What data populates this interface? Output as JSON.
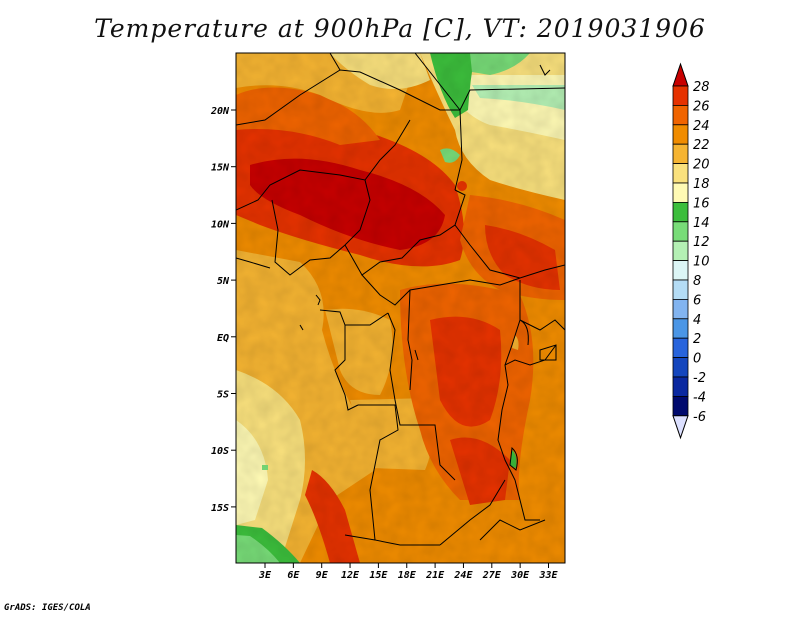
{
  "title": "Temperature at 900hPa [C], VT: 2019031906",
  "footer": "GrADS: IGES/COLA",
  "map": {
    "lat_ticks": [
      "20N",
      "15N",
      "10N",
      "5N",
      "EQ",
      "5S",
      "10S",
      "15S"
    ],
    "lon_ticks": [
      "3E",
      "6E",
      "9E",
      "12E",
      "15E",
      "18E",
      "21E",
      "24E",
      "27E",
      "30E",
      "33E"
    ]
  },
  "colorbar": {
    "labels": [
      "28",
      "26",
      "24",
      "22",
      "20",
      "18",
      "16",
      "14",
      "12",
      "10",
      "8",
      "6",
      "4",
      "2",
      "0",
      "-2",
      "-4",
      "-6"
    ],
    "colors": [
      "#c80000",
      "#e63200",
      "#f06400",
      "#f08c00",
      "#f5b432",
      "#fae17d",
      "#fffab4",
      "#3cbe3c",
      "#78dc78",
      "#b4f0b4",
      "#dcf5f5",
      "#b4dcf5",
      "#82b4f0",
      "#4b96e6",
      "#2864dc",
      "#1446be",
      "#0a28a0",
      "#000a6e"
    ],
    "over_color": "#c80000",
    "under_color": "#dce0ff"
  }
}
